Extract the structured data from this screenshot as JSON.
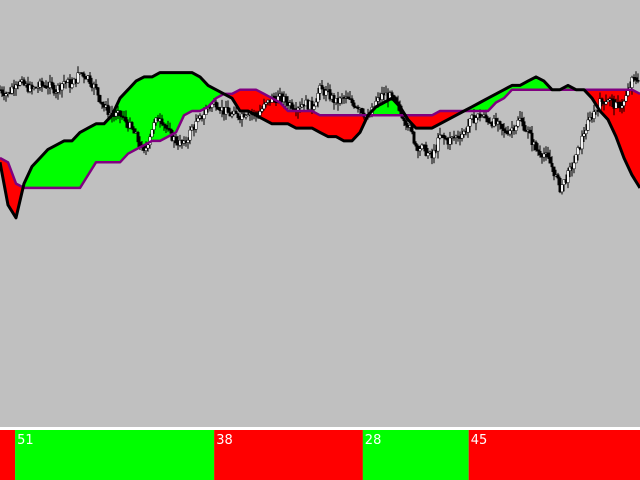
{
  "colors": {
    "background": "#c0c0c0",
    "bullish_cloud": "#00ff00",
    "bearish_cloud": "#ff0000",
    "span_a_line": "#000000",
    "span_b_line": "#800080",
    "candle": "#000000",
    "separator": "#ffffff",
    "label_text": "#ffffff"
  },
  "chart_data": {
    "type": "area",
    "title": "",
    "xlabel": "",
    "ylabel": "",
    "grid": false,
    "legend": "none",
    "x_range": [
      0,
      160
    ],
    "y_range": [
      0,
      100
    ],
    "cloud": {
      "x": [
        0,
        2,
        4,
        6,
        8,
        10,
        12,
        14,
        16,
        18,
        20,
        22,
        24,
        26,
        28,
        30,
        32,
        34,
        36,
        38,
        40,
        42,
        44,
        46,
        48,
        50,
        52,
        54,
        56,
        58,
        60,
        62,
        64,
        66,
        68,
        70,
        72,
        74,
        76,
        78,
        80,
        82,
        84,
        86,
        88,
        90,
        92,
        94,
        96,
        98,
        100,
        102,
        104,
        106,
        108,
        110,
        112,
        114,
        116,
        118,
        120,
        122,
        124,
        126,
        128,
        130,
        132,
        134,
        136,
        138,
        140,
        142,
        144,
        146,
        148,
        150,
        152,
        154,
        156,
        158,
        160
      ],
      "span_a": [
        62,
        52,
        49,
        57,
        61,
        63,
        65,
        66,
        67,
        67,
        69,
        70,
        71,
        71,
        73,
        77,
        79,
        81,
        82,
        82,
        83,
        83,
        83,
        83,
        83,
        82,
        80,
        79,
        78,
        77,
        74,
        74,
        73,
        72,
        71,
        71,
        71,
        70,
        70,
        70,
        69,
        68,
        68,
        67,
        67,
        69,
        73,
        75,
        76,
        77,
        75,
        72,
        70,
        70,
        70,
        71,
        72,
        73,
        74,
        75,
        76,
        77,
        78,
        79,
        80,
        80,
        81,
        82,
        81,
        79,
        79,
        80,
        79,
        79,
        77,
        74,
        72,
        68,
        63,
        59,
        56
      ],
      "span_b": [
        63,
        62,
        57,
        56,
        56,
        56,
        56,
        56,
        56,
        56,
        56,
        59,
        62,
        62,
        62,
        62,
        64,
        65,
        66,
        67,
        67,
        68,
        69,
        73,
        74,
        74,
        75,
        77,
        78,
        78,
        79,
        79,
        79,
        78,
        77,
        76,
        74,
        74,
        74,
        74,
        73,
        73,
        73,
        73,
        73,
        73,
        73,
        73,
        73,
        73,
        73,
        73,
        73,
        73,
        73,
        74,
        74,
        74,
        74,
        74,
        74,
        74,
        76,
        77,
        79,
        79,
        79,
        79,
        79,
        79,
        79,
        79,
        79,
        79,
        79,
        79,
        79,
        79,
        79,
        79,
        78
      ]
    },
    "price": {
      "x": [
        0,
        2,
        4,
        6,
        8,
        10,
        12,
        14,
        16,
        18,
        20,
        22,
        24,
        26,
        28,
        30,
        32,
        34,
        36,
        38,
        40,
        42,
        44,
        46,
        48,
        50,
        52,
        54,
        56,
        58,
        60,
        62,
        64,
        66,
        68,
        70,
        72,
        74,
        76,
        78,
        80,
        82,
        84,
        86,
        88,
        90,
        92,
        94,
        96,
        98,
        100,
        102,
        104,
        106,
        108,
        110,
        112,
        114,
        116,
        118,
        120,
        122,
        124,
        126,
        128,
        130,
        132,
        134,
        136,
        138,
        140,
        142,
        144,
        146,
        148,
        150,
        152,
        154,
        156,
        158,
        160
      ],
      "close": [
        79,
        78,
        81,
        80,
        79,
        80,
        80,
        79,
        81,
        80,
        83,
        82,
        79,
        75,
        73,
        73,
        71,
        68,
        64,
        70,
        73,
        69,
        67,
        66,
        70,
        72,
        75,
        76,
        74,
        73,
        73,
        74,
        73,
        75,
        77,
        77,
        76,
        75,
        76,
        75,
        79,
        78,
        76,
        77,
        76,
        75,
        72,
        76,
        78,
        77,
        74,
        71,
        66,
        65,
        63,
        68,
        67,
        68,
        69,
        72,
        73,
        72,
        71,
        69,
        70,
        72,
        69,
        65,
        64,
        61,
        56,
        59,
        63,
        69,
        73,
        76,
        77,
        75,
        76,
        81,
        82
      ]
    }
  },
  "segments_bar": [
    {
      "label": "",
      "from": 0,
      "to": 6,
      "color": "#ff0000"
    },
    {
      "label": "51",
      "from": 6,
      "to": 85,
      "color": "#00ff00"
    },
    {
      "label": "38",
      "from": 85,
      "to": 144,
      "color": "#ff0000"
    },
    {
      "label": "28",
      "from": 144,
      "to": 186,
      "color": "#00ff00"
    },
    {
      "label": "45",
      "from": 186,
      "to": 254,
      "color": "#ff0000"
    }
  ],
  "segments_total": 254
}
